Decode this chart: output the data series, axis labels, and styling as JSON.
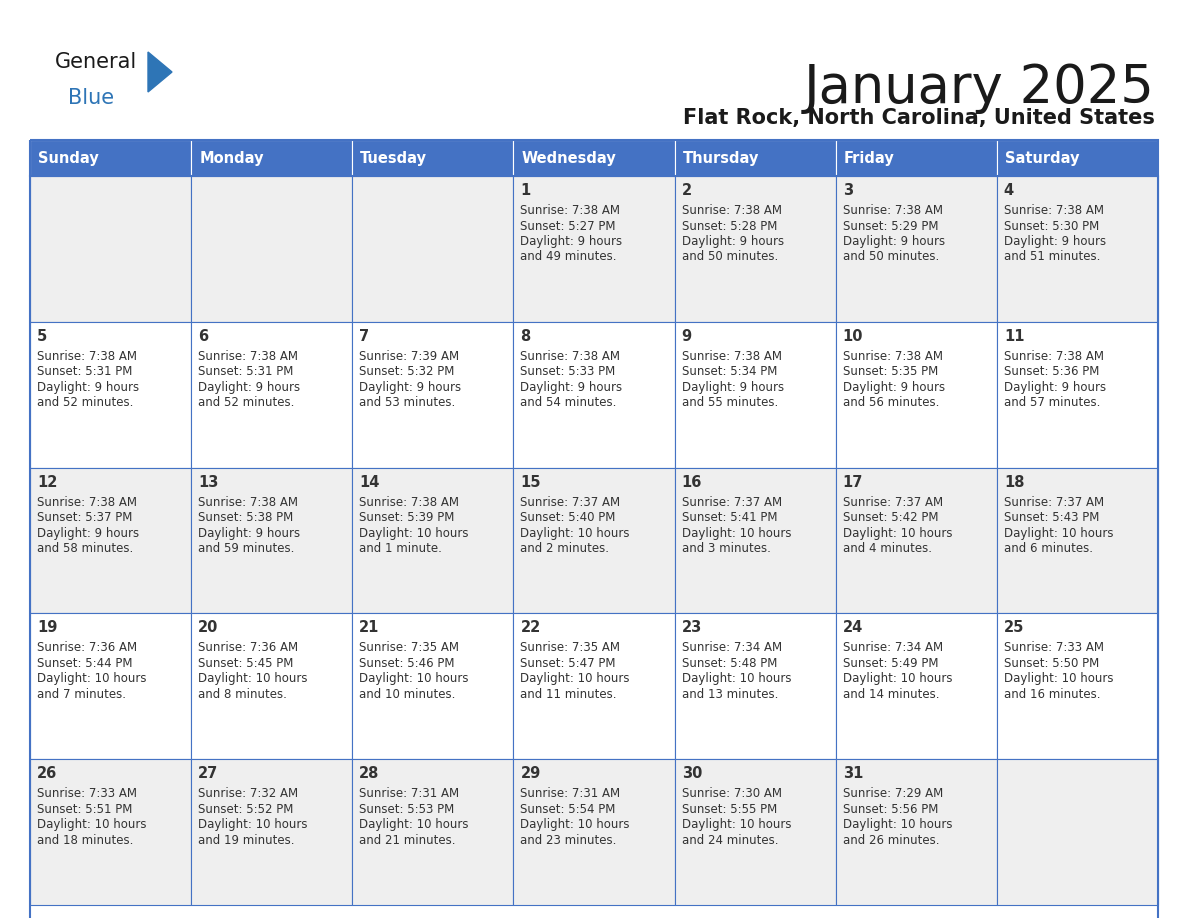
{
  "title": "January 2025",
  "subtitle": "Flat Rock, North Carolina, United States",
  "header_color": "#4472C4",
  "header_text_color": "#FFFFFF",
  "cell_bg_even": "#EFEFEF",
  "cell_bg_odd": "#FFFFFF",
  "border_color": "#4472C4",
  "text_color": "#333333",
  "day_headers": [
    "Sunday",
    "Monday",
    "Tuesday",
    "Wednesday",
    "Thursday",
    "Friday",
    "Saturday"
  ],
  "weeks": [
    [
      {
        "day": "",
        "sunrise": "",
        "sunset": "",
        "daylight_line1": "",
        "daylight_line2": ""
      },
      {
        "day": "",
        "sunrise": "",
        "sunset": "",
        "daylight_line1": "",
        "daylight_line2": ""
      },
      {
        "day": "",
        "sunrise": "",
        "sunset": "",
        "daylight_line1": "",
        "daylight_line2": ""
      },
      {
        "day": "1",
        "sunrise": "Sunrise: 7:38 AM",
        "sunset": "Sunset: 5:27 PM",
        "daylight_line1": "Daylight: 9 hours",
        "daylight_line2": "and 49 minutes."
      },
      {
        "day": "2",
        "sunrise": "Sunrise: 7:38 AM",
        "sunset": "Sunset: 5:28 PM",
        "daylight_line1": "Daylight: 9 hours",
        "daylight_line2": "and 50 minutes."
      },
      {
        "day": "3",
        "sunrise": "Sunrise: 7:38 AM",
        "sunset": "Sunset: 5:29 PM",
        "daylight_line1": "Daylight: 9 hours",
        "daylight_line2": "and 50 minutes."
      },
      {
        "day": "4",
        "sunrise": "Sunrise: 7:38 AM",
        "sunset": "Sunset: 5:30 PM",
        "daylight_line1": "Daylight: 9 hours",
        "daylight_line2": "and 51 minutes."
      }
    ],
    [
      {
        "day": "5",
        "sunrise": "Sunrise: 7:38 AM",
        "sunset": "Sunset: 5:31 PM",
        "daylight_line1": "Daylight: 9 hours",
        "daylight_line2": "and 52 minutes."
      },
      {
        "day": "6",
        "sunrise": "Sunrise: 7:38 AM",
        "sunset": "Sunset: 5:31 PM",
        "daylight_line1": "Daylight: 9 hours",
        "daylight_line2": "and 52 minutes."
      },
      {
        "day": "7",
        "sunrise": "Sunrise: 7:39 AM",
        "sunset": "Sunset: 5:32 PM",
        "daylight_line1": "Daylight: 9 hours",
        "daylight_line2": "and 53 minutes."
      },
      {
        "day": "8",
        "sunrise": "Sunrise: 7:38 AM",
        "sunset": "Sunset: 5:33 PM",
        "daylight_line1": "Daylight: 9 hours",
        "daylight_line2": "and 54 minutes."
      },
      {
        "day": "9",
        "sunrise": "Sunrise: 7:38 AM",
        "sunset": "Sunset: 5:34 PM",
        "daylight_line1": "Daylight: 9 hours",
        "daylight_line2": "and 55 minutes."
      },
      {
        "day": "10",
        "sunrise": "Sunrise: 7:38 AM",
        "sunset": "Sunset: 5:35 PM",
        "daylight_line1": "Daylight: 9 hours",
        "daylight_line2": "and 56 minutes."
      },
      {
        "day": "11",
        "sunrise": "Sunrise: 7:38 AM",
        "sunset": "Sunset: 5:36 PM",
        "daylight_line1": "Daylight: 9 hours",
        "daylight_line2": "and 57 minutes."
      }
    ],
    [
      {
        "day": "12",
        "sunrise": "Sunrise: 7:38 AM",
        "sunset": "Sunset: 5:37 PM",
        "daylight_line1": "Daylight: 9 hours",
        "daylight_line2": "and 58 minutes."
      },
      {
        "day": "13",
        "sunrise": "Sunrise: 7:38 AM",
        "sunset": "Sunset: 5:38 PM",
        "daylight_line1": "Daylight: 9 hours",
        "daylight_line2": "and 59 minutes."
      },
      {
        "day": "14",
        "sunrise": "Sunrise: 7:38 AM",
        "sunset": "Sunset: 5:39 PM",
        "daylight_line1": "Daylight: 10 hours",
        "daylight_line2": "and 1 minute."
      },
      {
        "day": "15",
        "sunrise": "Sunrise: 7:37 AM",
        "sunset": "Sunset: 5:40 PM",
        "daylight_line1": "Daylight: 10 hours",
        "daylight_line2": "and 2 minutes."
      },
      {
        "day": "16",
        "sunrise": "Sunrise: 7:37 AM",
        "sunset": "Sunset: 5:41 PM",
        "daylight_line1": "Daylight: 10 hours",
        "daylight_line2": "and 3 minutes."
      },
      {
        "day": "17",
        "sunrise": "Sunrise: 7:37 AM",
        "sunset": "Sunset: 5:42 PM",
        "daylight_line1": "Daylight: 10 hours",
        "daylight_line2": "and 4 minutes."
      },
      {
        "day": "18",
        "sunrise": "Sunrise: 7:37 AM",
        "sunset": "Sunset: 5:43 PM",
        "daylight_line1": "Daylight: 10 hours",
        "daylight_line2": "and 6 minutes."
      }
    ],
    [
      {
        "day": "19",
        "sunrise": "Sunrise: 7:36 AM",
        "sunset": "Sunset: 5:44 PM",
        "daylight_line1": "Daylight: 10 hours",
        "daylight_line2": "and 7 minutes."
      },
      {
        "day": "20",
        "sunrise": "Sunrise: 7:36 AM",
        "sunset": "Sunset: 5:45 PM",
        "daylight_line1": "Daylight: 10 hours",
        "daylight_line2": "and 8 minutes."
      },
      {
        "day": "21",
        "sunrise": "Sunrise: 7:35 AM",
        "sunset": "Sunset: 5:46 PM",
        "daylight_line1": "Daylight: 10 hours",
        "daylight_line2": "and 10 minutes."
      },
      {
        "day": "22",
        "sunrise": "Sunrise: 7:35 AM",
        "sunset": "Sunset: 5:47 PM",
        "daylight_line1": "Daylight: 10 hours",
        "daylight_line2": "and 11 minutes."
      },
      {
        "day": "23",
        "sunrise": "Sunrise: 7:34 AM",
        "sunset": "Sunset: 5:48 PM",
        "daylight_line1": "Daylight: 10 hours",
        "daylight_line2": "and 13 minutes."
      },
      {
        "day": "24",
        "sunrise": "Sunrise: 7:34 AM",
        "sunset": "Sunset: 5:49 PM",
        "daylight_line1": "Daylight: 10 hours",
        "daylight_line2": "and 14 minutes."
      },
      {
        "day": "25",
        "sunrise": "Sunrise: 7:33 AM",
        "sunset": "Sunset: 5:50 PM",
        "daylight_line1": "Daylight: 10 hours",
        "daylight_line2": "and 16 minutes."
      }
    ],
    [
      {
        "day": "26",
        "sunrise": "Sunrise: 7:33 AM",
        "sunset": "Sunset: 5:51 PM",
        "daylight_line1": "Daylight: 10 hours",
        "daylight_line2": "and 18 minutes."
      },
      {
        "day": "27",
        "sunrise": "Sunrise: 7:32 AM",
        "sunset": "Sunset: 5:52 PM",
        "daylight_line1": "Daylight: 10 hours",
        "daylight_line2": "and 19 minutes."
      },
      {
        "day": "28",
        "sunrise": "Sunrise: 7:31 AM",
        "sunset": "Sunset: 5:53 PM",
        "daylight_line1": "Daylight: 10 hours",
        "daylight_line2": "and 21 minutes."
      },
      {
        "day": "29",
        "sunrise": "Sunrise: 7:31 AM",
        "sunset": "Sunset: 5:54 PM",
        "daylight_line1": "Daylight: 10 hours",
        "daylight_line2": "and 23 minutes."
      },
      {
        "day": "30",
        "sunrise": "Sunrise: 7:30 AM",
        "sunset": "Sunset: 5:55 PM",
        "daylight_line1": "Daylight: 10 hours",
        "daylight_line2": "and 24 minutes."
      },
      {
        "day": "31",
        "sunrise": "Sunrise: 7:29 AM",
        "sunset": "Sunset: 5:56 PM",
        "daylight_line1": "Daylight: 10 hours",
        "daylight_line2": "and 26 minutes."
      },
      {
        "day": "",
        "sunrise": "",
        "sunset": "",
        "daylight_line1": "",
        "daylight_line2": ""
      }
    ]
  ],
  "logo_general_color": "#1a1a1a",
  "logo_blue_color": "#2E75B6",
  "logo_triangle_color": "#2E75B6"
}
